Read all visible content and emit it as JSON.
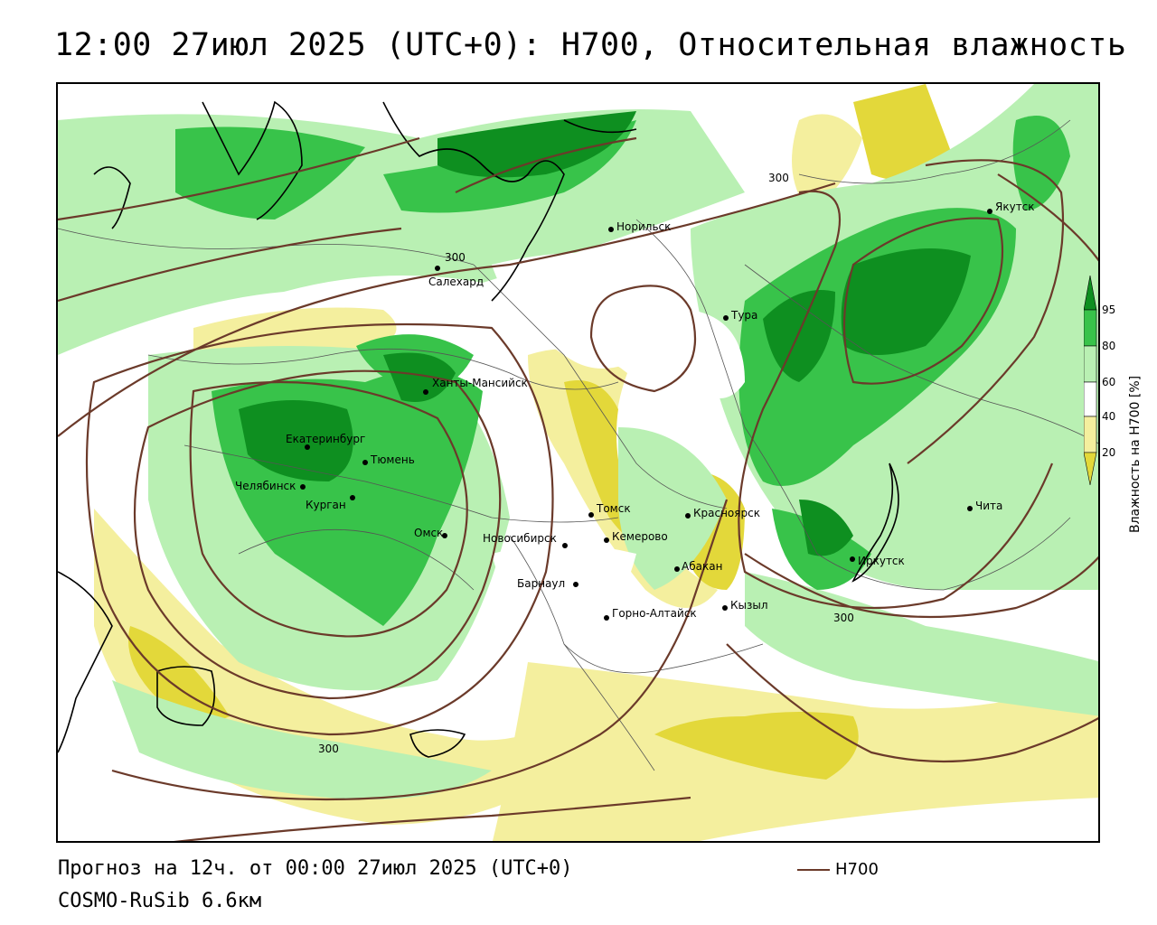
{
  "title": "12:00 27июл 2025 (UTC+0): H700, Относительная влажность",
  "footer": {
    "forecast": "Прогноз на 12ч. от 00:00 27июл 2025 (UTC+0)",
    "model": "COSMO-RuSib 6.6км",
    "contour_key": "H700"
  },
  "legend": {
    "title": "Влажность на H700 [%]",
    "ticks": [
      "95",
      "80",
      "60",
      "40",
      "20"
    ],
    "colors": {
      "95": "#0e8f20",
      "80": "#38c34a",
      "60": "#b9f0b3",
      "40": "#ffffff",
      "20": "#f4ef9e",
      "lt20": "#e3d83a"
    }
  },
  "contours": {
    "color": "#6b3a2a",
    "labels": [
      "300",
      "300",
      "300",
      "300"
    ]
  },
  "cities": [
    {
      "name": "Норильск"
    },
    {
      "name": "Якутск"
    },
    {
      "name": "Салехард"
    },
    {
      "name": "Тура"
    },
    {
      "name": "Ханты-Мансийск"
    },
    {
      "name": "Екатеринбург"
    },
    {
      "name": "Тюмень"
    },
    {
      "name": "Челябинск"
    },
    {
      "name": "Курган"
    },
    {
      "name": "Омск"
    },
    {
      "name": "Томск"
    },
    {
      "name": "Красноярск"
    },
    {
      "name": "Кемерово"
    },
    {
      "name": "Новосибирск"
    },
    {
      "name": "Чита"
    },
    {
      "name": "Иркутск"
    },
    {
      "name": "Абакан"
    },
    {
      "name": "Барнаул"
    },
    {
      "name": "Кызыл"
    },
    {
      "name": "Горно-Алтайск"
    }
  ]
}
